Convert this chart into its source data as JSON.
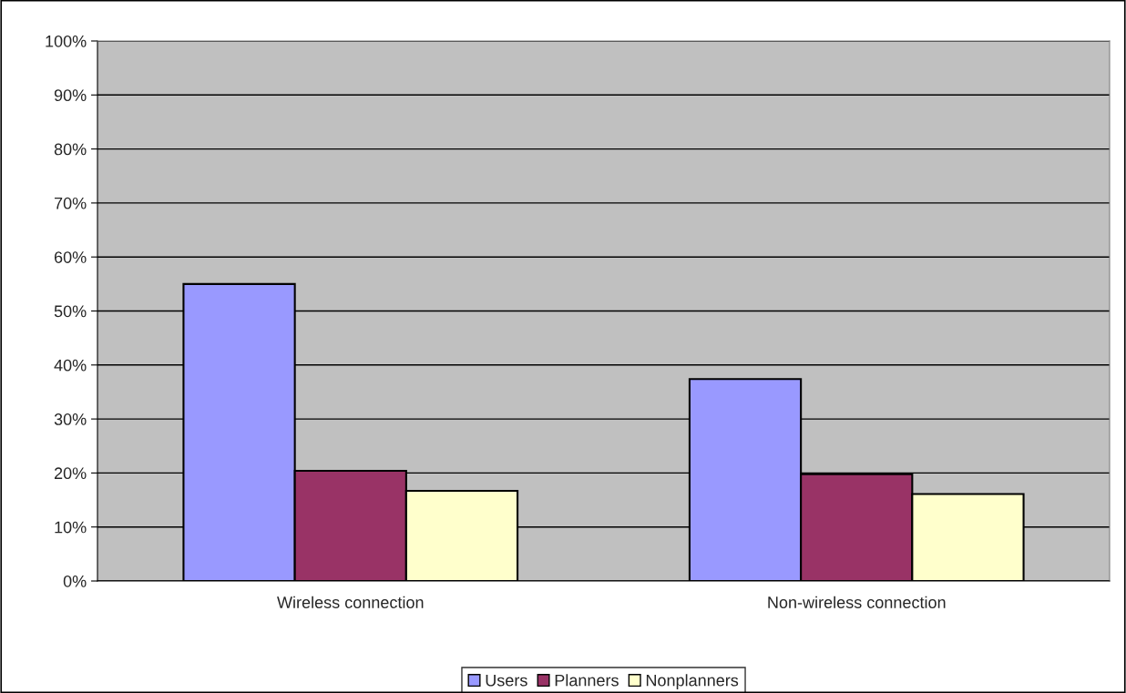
{
  "chart_data": {
    "type": "bar",
    "categories": [
      "Wireless connection",
      "Non-wireless connection"
    ],
    "series": [
      {
        "name": "Users",
        "color": "#9999ff",
        "values": [
          55.0,
          37.4
        ]
      },
      {
        "name": "Planners",
        "color": "#993366",
        "values": [
          20.4,
          19.8
        ]
      },
      {
        "name": "Nonplanners",
        "color": "#ffffcc",
        "values": [
          16.7,
          16.1
        ]
      }
    ],
    "ylim": [
      0,
      100
    ],
    "yticks": [
      {
        "value": 0,
        "label": "0%"
      },
      {
        "value": 10,
        "label": "10%"
      },
      {
        "value": 20,
        "label": "20%"
      },
      {
        "value": 30,
        "label": "30%"
      },
      {
        "value": 40,
        "label": "40%"
      },
      {
        "value": 50,
        "label": "50%"
      },
      {
        "value": 60,
        "label": "60%"
      },
      {
        "value": 70,
        "label": "70%"
      },
      {
        "value": 80,
        "label": "80%"
      },
      {
        "value": 90,
        "label": "90%"
      },
      {
        "value": 100,
        "label": "100%"
      }
    ],
    "grid": "y",
    "legend": "bottom"
  }
}
